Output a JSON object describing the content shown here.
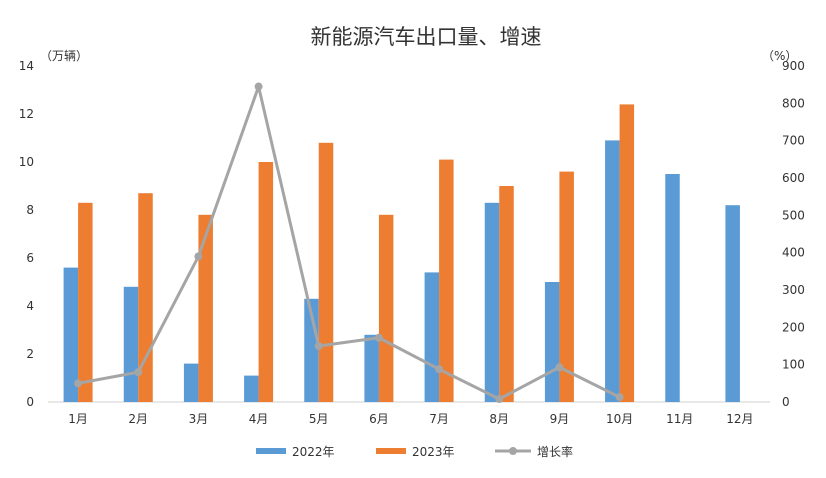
{
  "chart_data": {
    "type": "bar",
    "title": "新能源汽车出口量、增速",
    "y_left_unit": "（万辆）",
    "y_right_unit": "（%）",
    "categories": [
      "1月",
      "2月",
      "3月",
      "4月",
      "5月",
      "6月",
      "7月",
      "8月",
      "9月",
      "10月",
      "11月",
      "12月"
    ],
    "ylim_left": [
      0,
      14
    ],
    "yticks_left": [
      "0",
      "2",
      "4",
      "6",
      "8",
      "10",
      "12",
      "14"
    ],
    "ylim_right": [
      0,
      900
    ],
    "yticks_right": [
      "0",
      "100",
      "200",
      "300",
      "400",
      "500",
      "600",
      "700",
      "800",
      "900"
    ],
    "series": [
      {
        "name": "2022年",
        "type": "bar",
        "axis": "left",
        "color": "#5B9BD5",
        "values": [
          5.6,
          4.8,
          1.6,
          1.1,
          4.3,
          2.8,
          5.4,
          8.3,
          5.0,
          10.9,
          9.5,
          8.2
        ]
      },
      {
        "name": "2023年",
        "type": "bar",
        "axis": "left",
        "color": "#ED7D31",
        "values": [
          8.3,
          8.7,
          7.8,
          10.0,
          10.8,
          7.8,
          10.1,
          9.0,
          9.6,
          12.4,
          null,
          null
        ]
      },
      {
        "name": "增长率",
        "type": "line",
        "axis": "right",
        "color": "#A5A5A5",
        "values": [
          50,
          80,
          390,
          845,
          150,
          172,
          88,
          8,
          93,
          13,
          null,
          null
        ]
      }
    ],
    "grid": false,
    "legend_position": "bottom"
  }
}
